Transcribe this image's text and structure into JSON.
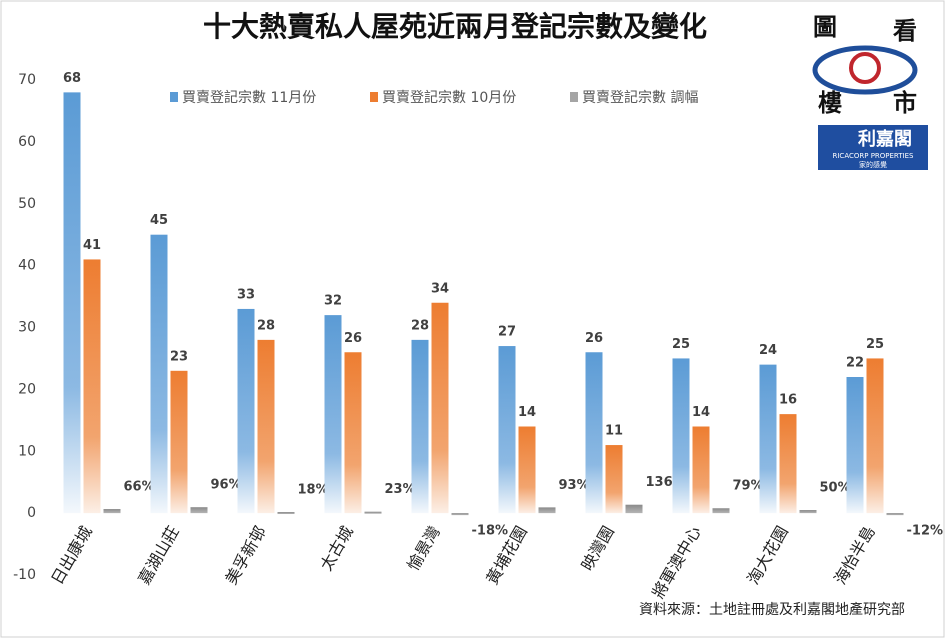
{
  "chart_data": {
    "type": "bar",
    "title": "十大熱賣私人屋苑近兩月登記宗數及變化",
    "categories": [
      "日出康城",
      "嘉湖山莊",
      "美孚新邨",
      "太古城",
      "愉景灣",
      "黃埔花園",
      "映灣園",
      "將軍澳中心",
      "淘大花園",
      "海怡半島"
    ],
    "series": [
      {
        "name": "買賣登記宗數 11月份",
        "color": "#5b9bd5",
        "values": [
          68,
          45,
          33,
          32,
          28,
          27,
          26,
          25,
          24,
          22
        ]
      },
      {
        "name": "買賣登記宗數 10月份",
        "color": "#ed7d31",
        "values": [
          41,
          23,
          28,
          26,
          34,
          14,
          11,
          14,
          16,
          25
        ]
      },
      {
        "name": "買賣登記宗數 調幅",
        "color": "#a5a5a5",
        "values": [
          0.66,
          0.96,
          0.18,
          0.23,
          -0.18,
          0.93,
          1.36,
          0.79,
          0.5,
          -0.12
        ],
        "value_labels": [
          "66%",
          "96%",
          "18%",
          "23%",
          "-18%",
          "93%",
          "136%",
          "79%",
          "50%",
          "-12%"
        ]
      }
    ],
    "ylim": [
      -10,
      70
    ],
    "yticks": [
      -10,
      0,
      10,
      20,
      30,
      40,
      50,
      60,
      70
    ],
    "grid": false,
    "source": "資料來源：土地註冊處及利嘉閣地產研究部"
  },
  "logo": {
    "chars": [
      "圖",
      "看",
      "樓",
      "市"
    ],
    "brand": "利嘉閣",
    "brand_en": "RICACORP PROPERTIES",
    "slogan": "家的感覺"
  }
}
